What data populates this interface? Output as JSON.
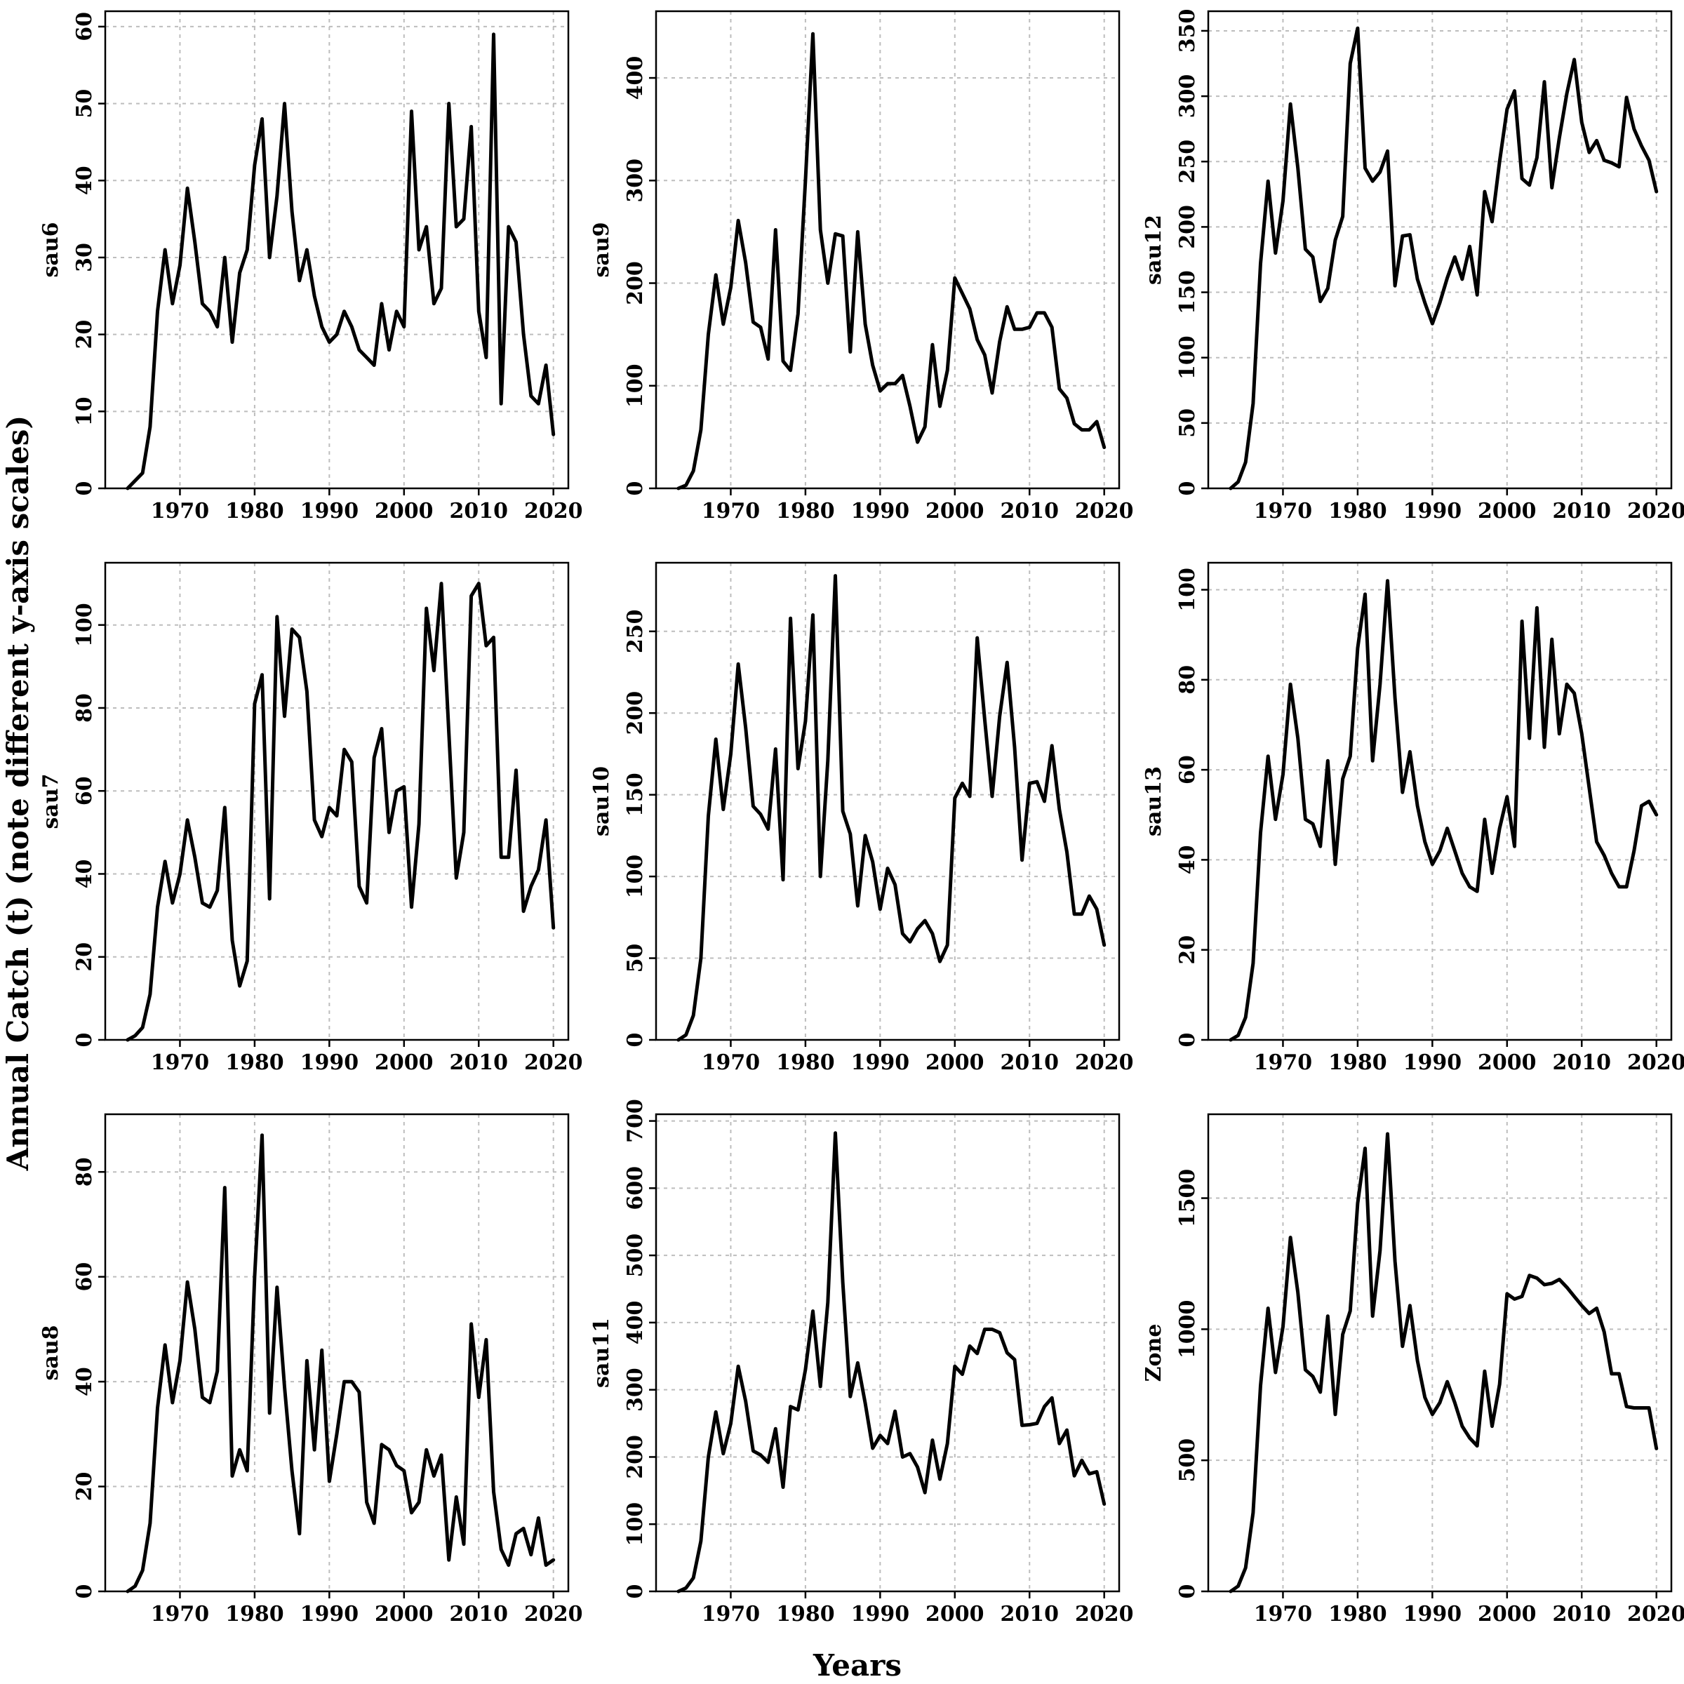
{
  "figure": {
    "ylabel": "Annual Catch (t) (note different y-axis scales)",
    "xlabel": "Years"
  },
  "chart_data": [
    {
      "type": "line",
      "title": "",
      "ylabel": "sau6",
      "xlabel": "",
      "xlim": [
        1960,
        2022
      ],
      "ylim": [
        0,
        62
      ],
      "xticks": [
        1970,
        1980,
        1990,
        2000,
        2010,
        2020
      ],
      "yticks": [
        0,
        10,
        20,
        30,
        40,
        50,
        60
      ],
      "grid": true,
      "x": [
        1963,
        1964,
        1965,
        1966,
        1967,
        1968,
        1969,
        1970,
        1971,
        1972,
        1973,
        1974,
        1975,
        1976,
        1977,
        1978,
        1979,
        1980,
        1981,
        1982,
        1983,
        1984,
        1985,
        1986,
        1987,
        1988,
        1989,
        1990,
        1991,
        1992,
        1993,
        1994,
        1995,
        1996,
        1997,
        1998,
        1999,
        2000,
        2001,
        2002,
        2003,
        2004,
        2005,
        2006,
        2007,
        2008,
        2009,
        2010,
        2011,
        2012,
        2013,
        2014,
        2015,
        2016,
        2017,
        2018,
        2019,
        2020
      ],
      "values": [
        0,
        1,
        2,
        8,
        23,
        31,
        24,
        29,
        39,
        32,
        24,
        23,
        21,
        30,
        19,
        28,
        31,
        42,
        48,
        30,
        38,
        50,
        36,
        27,
        31,
        25,
        21,
        19,
        20,
        23,
        21,
        18,
        17,
        16,
        24,
        18,
        23,
        21,
        49,
        31,
        34,
        24,
        26,
        50,
        34,
        35,
        47,
        23,
        17,
        59,
        11,
        34,
        32,
        20,
        12,
        11,
        16,
        7
      ]
    },
    {
      "type": "line",
      "title": "",
      "ylabel": "sau9",
      "xlabel": "",
      "xlim": [
        1960,
        2022
      ],
      "ylim": [
        0,
        465
      ],
      "xticks": [
        1970,
        1980,
        1990,
        2000,
        2010,
        2020
      ],
      "yticks": [
        0,
        100,
        200,
        300,
        400
      ],
      "grid": true,
      "x": [
        1963,
        1964,
        1965,
        1966,
        1967,
        1968,
        1969,
        1970,
        1971,
        1972,
        1973,
        1974,
        1975,
        1976,
        1977,
        1978,
        1979,
        1980,
        1981,
        1982,
        1983,
        1984,
        1985,
        1986,
        1987,
        1988,
        1989,
        1990,
        1991,
        1992,
        1993,
        1994,
        1995,
        1996,
        1997,
        1998,
        1999,
        2000,
        2001,
        2002,
        2003,
        2004,
        2005,
        2006,
        2007,
        2008,
        2009,
        2010,
        2011,
        2012,
        2013,
        2014,
        2015,
        2016,
        2017,
        2018,
        2019,
        2020
      ],
      "values": [
        0,
        3,
        17,
        57,
        150,
        208,
        160,
        196,
        261,
        220,
        162,
        157,
        126,
        252,
        124,
        115,
        170,
        300,
        443,
        252,
        200,
        248,
        246,
        133,
        250,
        160,
        120,
        95,
        102,
        102,
        110,
        80,
        45,
        60,
        140,
        80,
        115,
        205,
        190,
        175,
        145,
        130,
        93,
        143,
        177,
        155,
        155,
        157,
        171,
        171,
        157,
        97,
        88,
        63,
        57,
        57,
        65,
        40
      ]
    },
    {
      "type": "line",
      "title": "",
      "ylabel": "sau12",
      "xlabel": "",
      "xlim": [
        1960,
        2022
      ],
      "ylim": [
        0,
        365
      ],
      "xticks": [
        1970,
        1980,
        1990,
        2000,
        2010,
        2020
      ],
      "yticks": [
        0,
        50,
        100,
        150,
        200,
        250,
        300,
        350
      ],
      "grid": true,
      "x": [
        1963,
        1964,
        1965,
        1966,
        1967,
        1968,
        1969,
        1970,
        1971,
        1972,
        1973,
        1974,
        1975,
        1976,
        1977,
        1978,
        1979,
        1980,
        1981,
        1982,
        1983,
        1984,
        1985,
        1986,
        1987,
        1988,
        1989,
        1990,
        1991,
        1992,
        1993,
        1994,
        1995,
        1996,
        1997,
        1998,
        1999,
        2000,
        2001,
        2002,
        2003,
        2004,
        2005,
        2006,
        2007,
        2008,
        2009,
        2010,
        2011,
        2012,
        2013,
        2014,
        2015,
        2016,
        2017,
        2018,
        2019,
        2020
      ],
      "values": [
        0,
        5,
        20,
        65,
        172,
        235,
        180,
        220,
        294,
        245,
        183,
        177,
        143,
        153,
        190,
        208,
        325,
        352,
        245,
        235,
        242,
        258,
        155,
        193,
        194,
        160,
        142,
        126,
        142,
        161,
        177,
        160,
        185,
        148,
        227,
        204,
        250,
        290,
        304,
        237,
        232,
        253,
        311,
        230,
        268,
        302,
        328,
        280,
        257,
        266,
        251,
        249,
        246,
        299,
        275,
        262,
        251,
        227
      ]
    },
    {
      "type": "line",
      "title": "",
      "ylabel": "sau7",
      "xlabel": "",
      "xlim": [
        1960,
        2022
      ],
      "ylim": [
        0,
        115
      ],
      "xticks": [
        1970,
        1980,
        1990,
        2000,
        2010,
        2020
      ],
      "yticks": [
        0,
        20,
        40,
        60,
        80,
        100
      ],
      "grid": true,
      "x": [
        1963,
        1964,
        1965,
        1966,
        1967,
        1968,
        1969,
        1970,
        1971,
        1972,
        1973,
        1974,
        1975,
        1976,
        1977,
        1978,
        1979,
        1980,
        1981,
        1982,
        1983,
        1984,
        1985,
        1986,
        1987,
        1988,
        1989,
        1990,
        1991,
        1992,
        1993,
        1994,
        1995,
        1996,
        1997,
        1998,
        1999,
        2000,
        2001,
        2002,
        2003,
        2004,
        2005,
        2006,
        2007,
        2008,
        2009,
        2010,
        2011,
        2012,
        2013,
        2014,
        2015,
        2016,
        2017,
        2018,
        2019,
        2020
      ],
      "values": [
        0,
        1,
        3,
        11,
        32,
        43,
        33,
        40,
        53,
        44,
        33,
        32,
        36,
        56,
        24,
        13,
        19,
        81,
        88,
        34,
        102,
        78,
        99,
        97,
        84,
        53,
        49,
        56,
        54,
        70,
        67,
        37,
        33,
        68,
        75,
        50,
        60,
        61,
        32,
        52,
        104,
        89,
        110,
        74,
        39,
        50,
        107,
        110,
        95,
        97,
        44,
        44,
        65,
        31,
        37,
        41,
        53,
        27
      ]
    },
    {
      "type": "line",
      "title": "",
      "ylabel": "sau10",
      "xlabel": "",
      "xlim": [
        1960,
        2022
      ],
      "ylim": [
        0,
        292
      ],
      "xticks": [
        1970,
        1980,
        1990,
        2000,
        2010,
        2020
      ],
      "yticks": [
        0,
        50,
        100,
        150,
        200,
        250
      ],
      "grid": true,
      "x": [
        1963,
        1964,
        1965,
        1966,
        1967,
        1968,
        1969,
        1970,
        1971,
        1972,
        1973,
        1974,
        1975,
        1976,
        1977,
        1978,
        1979,
        1980,
        1981,
        1982,
        1983,
        1984,
        1985,
        1986,
        1987,
        1988,
        1989,
        1990,
        1991,
        1992,
        1993,
        1994,
        1995,
        1996,
        1997,
        1998,
        1999,
        2000,
        2001,
        2002,
        2003,
        2004,
        2005,
        2006,
        2007,
        2008,
        2009,
        2010,
        2011,
        2012,
        2013,
        2014,
        2015,
        2016,
        2017,
        2018,
        2019,
        2020
      ],
      "values": [
        0,
        3,
        15,
        50,
        137,
        184,
        141,
        175,
        230,
        191,
        143,
        138,
        129,
        178,
        98,
        258,
        166,
        195,
        260,
        100,
        171,
        284,
        140,
        126,
        82,
        125,
        109,
        80,
        105,
        95,
        65,
        60,
        68,
        73,
        65,
        48,
        58,
        148,
        157,
        149,
        246,
        196,
        149,
        198,
        231,
        179,
        110,
        157,
        158,
        146,
        180,
        141,
        115,
        77,
        77,
        88,
        80,
        58
      ]
    },
    {
      "type": "line",
      "title": "",
      "ylabel": "sau13",
      "xlabel": "",
      "xlim": [
        1960,
        2022
      ],
      "ylim": [
        0,
        106
      ],
      "xticks": [
        1970,
        1980,
        1990,
        2000,
        2010,
        2020
      ],
      "yticks": [
        0,
        20,
        40,
        60,
        80,
        100
      ],
      "grid": true,
      "x": [
        1963,
        1964,
        1965,
        1966,
        1967,
        1968,
        1969,
        1970,
        1971,
        1972,
        1973,
        1974,
        1975,
        1976,
        1977,
        1978,
        1979,
        1980,
        1981,
        1982,
        1983,
        1984,
        1985,
        1986,
        1987,
        1988,
        1989,
        1990,
        1991,
        1992,
        1993,
        1994,
        1995,
        1996,
        1997,
        1998,
        1999,
        2000,
        2001,
        2002,
        2003,
        2004,
        2005,
        2006,
        2007,
        2008,
        2009,
        2010,
        2011,
        2012,
        2013,
        2014,
        2015,
        2016,
        2017,
        2018,
        2019,
        2020
      ],
      "values": [
        0,
        1,
        5,
        17,
        46,
        63,
        49,
        59,
        79,
        67,
        49,
        48,
        43,
        62,
        39,
        58,
        63,
        87,
        99,
        62,
        79,
        102,
        76,
        55,
        64,
        52,
        44,
        39,
        42,
        47,
        42,
        37,
        34,
        33,
        49,
        37,
        47,
        54,
        43,
        93,
        67,
        96,
        65,
        89,
        68,
        79,
        77,
        68,
        56,
        44,
        41,
        37,
        34,
        34,
        42,
        52,
        53,
        50
      ]
    },
    {
      "type": "line",
      "title": "",
      "ylabel": "sau8",
      "xlabel": "",
      "xlim": [
        1960,
        2022
      ],
      "ylim": [
        0,
        91
      ],
      "xticks": [
        1970,
        1980,
        1990,
        2000,
        2010,
        2020
      ],
      "yticks": [
        0,
        20,
        40,
        60,
        80
      ],
      "grid": true,
      "x": [
        1963,
        1964,
        1965,
        1966,
        1967,
        1968,
        1969,
        1970,
        1971,
        1972,
        1973,
        1974,
        1975,
        1976,
        1977,
        1978,
        1979,
        1980,
        1981,
        1982,
        1983,
        1984,
        1985,
        1986,
        1987,
        1988,
        1989,
        1990,
        1991,
        1992,
        1993,
        1994,
        1995,
        1996,
        1997,
        1998,
        1999,
        2000,
        2001,
        2002,
        2003,
        2004,
        2005,
        2006,
        2007,
        2008,
        2009,
        2010,
        2011,
        2012,
        2013,
        2014,
        2015,
        2016,
        2017,
        2018,
        2019,
        2020
      ],
      "values": [
        0,
        1,
        4,
        13,
        35,
        47,
        36,
        44,
        59,
        50,
        37,
        36,
        42,
        77,
        22,
        27,
        23,
        60,
        87,
        34,
        58,
        39,
        23,
        11,
        44,
        27,
        46,
        21,
        30,
        40,
        40,
        38,
        17,
        13,
        28,
        27,
        24,
        23,
        15,
        17,
        27,
        22,
        26,
        6,
        18,
        9,
        51,
        37,
        48,
        19,
        8,
        5,
        11,
        12,
        7,
        14,
        5,
        6
      ]
    },
    {
      "type": "line",
      "title": "",
      "ylabel": "sau11",
      "xlabel": "",
      "xlim": [
        1960,
        2022
      ],
      "ylim": [
        0,
        710
      ],
      "xticks": [
        1970,
        1980,
        1990,
        2000,
        2010,
        2020
      ],
      "yticks": [
        0,
        100,
        200,
        300,
        400,
        500,
        600,
        700
      ],
      "grid": true,
      "x": [
        1963,
        1964,
        1965,
        1966,
        1967,
        1968,
        1969,
        1970,
        1971,
        1972,
        1973,
        1974,
        1975,
        1976,
        1977,
        1978,
        1979,
        1980,
        1981,
        1982,
        1983,
        1984,
        1985,
        1986,
        1987,
        1988,
        1989,
        1990,
        1991,
        1992,
        1993,
        1994,
        1995,
        1996,
        1997,
        1998,
        1999,
        2000,
        2001,
        2002,
        2003,
        2004,
        2005,
        2006,
        2007,
        2008,
        2009,
        2010,
        2011,
        2012,
        2013,
        2014,
        2015,
        2016,
        2017,
        2018,
        2019,
        2020
      ],
      "values": [
        0,
        5,
        20,
        75,
        200,
        267,
        205,
        250,
        335,
        283,
        209,
        203,
        192,
        242,
        155,
        275,
        270,
        330,
        417,
        305,
        430,
        682,
        460,
        290,
        340,
        280,
        213,
        232,
        220,
        268,
        200,
        205,
        185,
        147,
        225,
        167,
        220,
        335,
        323,
        365,
        354,
        390,
        390,
        385,
        355,
        345,
        247,
        248,
        250,
        275,
        288,
        220,
        240,
        172,
        195,
        175,
        178,
        130
      ]
    },
    {
      "type": "line",
      "title": "",
      "ylabel": "Zone",
      "xlabel": "",
      "xlim": [
        1960,
        2022
      ],
      "ylim": [
        0,
        1820
      ],
      "xticks": [
        1970,
        1980,
        1990,
        2000,
        2010,
        2020
      ],
      "yticks": [
        0,
        500,
        1000,
        1500
      ],
      "grid": true,
      "x": [
        1963,
        1964,
        1965,
        1966,
        1967,
        1968,
        1969,
        1970,
        1971,
        1972,
        1973,
        1974,
        1975,
        1976,
        1977,
        1978,
        1979,
        1980,
        1981,
        1982,
        1983,
        1984,
        1985,
        1986,
        1987,
        1988,
        1989,
        1990,
        1991,
        1992,
        1993,
        1994,
        1995,
        1996,
        1997,
        1998,
        1999,
        2000,
        2001,
        2002,
        2003,
        2004,
        2005,
        2006,
        2007,
        2008,
        2009,
        2010,
        2011,
        2012,
        2013,
        2014,
        2015,
        2016,
        2017,
        2018,
        2019,
        2020
      ],
      "values": [
        0,
        20,
        90,
        300,
        785,
        1080,
        835,
        1010,
        1350,
        1140,
        845,
        820,
        760,
        1050,
        675,
        980,
        1070,
        1480,
        1690,
        1050,
        1300,
        1745,
        1260,
        935,
        1090,
        880,
        740,
        675,
        720,
        800,
        720,
        630,
        585,
        555,
        840,
        630,
        790,
        1135,
        1115,
        1125,
        1205,
        1195,
        1170,
        1175,
        1190,
        1160,
        1125,
        1090,
        1060,
        1080,
        990,
        830,
        830,
        705,
        700,
        700,
        700,
        545
      ]
    }
  ]
}
